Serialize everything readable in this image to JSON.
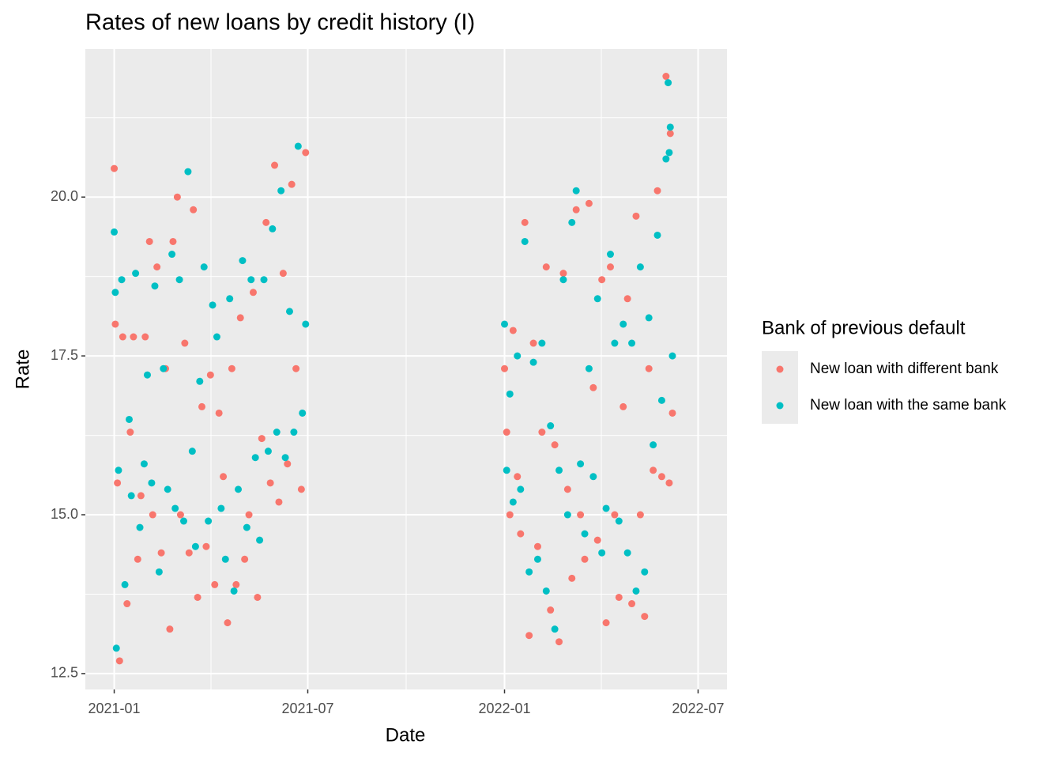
{
  "chart_data": {
    "type": "scatter",
    "title": "Rates of new loans by credit history (I)",
    "x_label": "Date",
    "y_label": "Rate",
    "xlim": [
      -27,
      573
    ],
    "xticks": [
      {
        "value": 0,
        "label": "2021-01"
      },
      {
        "value": 181,
        "label": "2021-07"
      },
      {
        "value": 365,
        "label": "2022-01"
      },
      {
        "value": 546,
        "label": "2022-07"
      }
    ],
    "ylim": [
      12.25,
      22.33
    ],
    "yticks": [
      {
        "value": 12.5,
        "label": "12.5"
      },
      {
        "value": 15,
        "label": "15.0"
      },
      {
        "value": 17.5,
        "label": "17.5"
      },
      {
        "value": 20,
        "label": "20.0"
      }
    ],
    "grid": true,
    "legend_title": "Bank of previous default",
    "legend_position": "right",
    "series": [
      {
        "name": "New loan with different bank",
        "color": "#F8766D",
        "x": [
          0,
          1,
          3,
          5,
          8,
          12,
          15,
          18,
          22,
          25,
          29,
          33,
          36,
          40,
          44,
          48,
          52,
          55,
          59,
          62,
          66,
          70,
          74,
          78,
          82,
          86,
          90,
          94,
          98,
          102,
          106,
          110,
          114,
          118,
          122,
          126,
          130,
          134,
          138,
          142,
          146,
          150,
          154,
          158,
          162,
          166,
          170,
          175,
          179,
          365,
          367,
          370,
          373,
          377,
          380,
          384,
          388,
          392,
          396,
          400,
          404,
          408,
          412,
          416,
          420,
          424,
          428,
          432,
          436,
          440,
          444,
          448,
          452,
          456,
          460,
          464,
          468,
          472,
          476,
          480,
          484,
          488,
          492,
          496,
          500,
          504,
          508,
          512,
          516,
          519,
          520,
          522
        ],
        "values": [
          20.45,
          18.0,
          15.5,
          12.7,
          17.8,
          13.6,
          16.3,
          17.8,
          14.3,
          15.3,
          17.8,
          19.3,
          15.0,
          18.9,
          14.4,
          17.3,
          13.2,
          19.3,
          20.0,
          15.0,
          17.7,
          14.4,
          19.8,
          13.7,
          16.7,
          14.5,
          17.2,
          13.9,
          16.6,
          15.6,
          13.3,
          17.3,
          13.9,
          18.1,
          14.3,
          15.0,
          18.5,
          13.7,
          16.2,
          19.6,
          15.5,
          20.5,
          15.2,
          18.8,
          15.8,
          20.2,
          17.3,
          15.4,
          20.7,
          17.3,
          16.3,
          15.0,
          17.9,
          15.6,
          14.7,
          19.6,
          13.1,
          17.7,
          14.5,
          16.3,
          18.9,
          13.5,
          16.1,
          13.0,
          18.8,
          15.4,
          14.0,
          19.8,
          15.0,
          14.3,
          19.9,
          17.0,
          14.6,
          18.7,
          13.3,
          18.9,
          15.0,
          13.7,
          16.7,
          18.4,
          13.6,
          19.7,
          15.0,
          13.4,
          17.3,
          15.7,
          20.1,
          15.6,
          21.9,
          15.5,
          21.0,
          16.6
        ]
      },
      {
        "name": "New loan with the same bank",
        "color": "#00BFC4",
        "x": [
          0,
          1,
          2,
          4,
          7,
          10,
          14,
          16,
          20,
          24,
          28,
          31,
          35,
          38,
          42,
          46,
          50,
          54,
          57,
          61,
          65,
          69,
          73,
          76,
          80,
          84,
          88,
          92,
          96,
          100,
          104,
          108,
          112,
          116,
          120,
          124,
          128,
          132,
          136,
          140,
          144,
          148,
          152,
          156,
          160,
          164,
          168,
          172,
          176,
          179,
          365,
          367,
          370,
          373,
          377,
          380,
          384,
          388,
          392,
          396,
          400,
          404,
          408,
          412,
          416,
          420,
          424,
          428,
          432,
          436,
          440,
          444,
          448,
          452,
          456,
          460,
          464,
          468,
          472,
          476,
          480,
          484,
          488,
          492,
          496,
          500,
          504,
          508,
          512,
          516,
          518,
          519,
          520,
          522
        ],
        "values": [
          19.45,
          18.5,
          12.9,
          15.7,
          18.7,
          13.9,
          16.5,
          15.3,
          18.8,
          14.8,
          15.8,
          17.2,
          15.5,
          18.6,
          14.1,
          17.3,
          15.4,
          19.1,
          15.1,
          18.7,
          14.9,
          20.4,
          16.0,
          14.5,
          17.1,
          18.9,
          14.9,
          18.3,
          17.8,
          15.1,
          14.3,
          18.4,
          13.8,
          15.4,
          19.0,
          14.8,
          18.7,
          15.9,
          14.6,
          18.7,
          16.0,
          19.5,
          16.3,
          20.1,
          15.9,
          18.2,
          16.3,
          20.8,
          16.6,
          18.0,
          18.0,
          15.7,
          16.9,
          15.2,
          17.5,
          15.4,
          19.3,
          14.1,
          17.4,
          14.3,
          17.7,
          13.8,
          16.4,
          13.2,
          15.7,
          18.7,
          15.0,
          19.6,
          20.1,
          15.8,
          14.7,
          17.3,
          15.6,
          18.4,
          14.4,
          15.1,
          19.1,
          17.7,
          14.9,
          18.0,
          14.4,
          17.7,
          13.8,
          18.9,
          14.1,
          18.1,
          16.1,
          19.4,
          16.8,
          20.6,
          21.8,
          20.7,
          21.1,
          17.5
        ]
      }
    ]
  }
}
